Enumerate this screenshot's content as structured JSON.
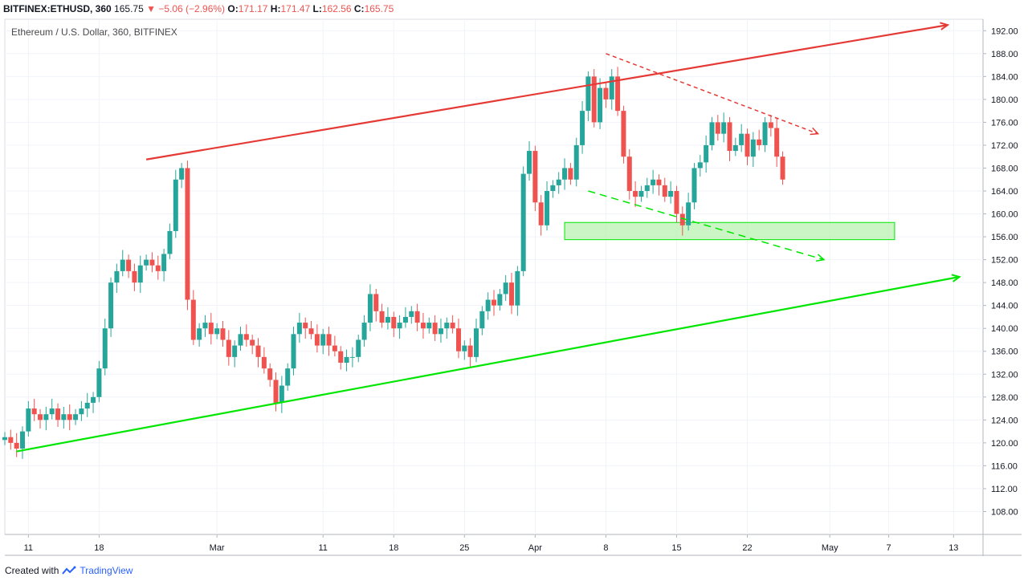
{
  "header": {
    "symbol": "BITFINEX:ETHUSD, 360",
    "last": "165.75",
    "change": "−5.06 (−2.96%)",
    "o_label": "O:",
    "o_val": "171.17",
    "h_label": "H:",
    "h_val": "171.47",
    "l_label": "L:",
    "l_val": "162.56",
    "c_label": "C:",
    "c_val": "165.75"
  },
  "legend_title": "Ethereum / U.S. Dollar, 360, BITFINEX",
  "footer": {
    "created_with": "Created with",
    "brand": "TradingView"
  },
  "colors": {
    "up": "#26a69a",
    "down": "#ef5350",
    "resistance": "#e53935",
    "support": "#00e600",
    "zone": "#b9f2b0"
  },
  "chart_data": {
    "type": "candlestick",
    "title": "Ethereum / U.S. Dollar, 360, BITFINEX",
    "ylim": [
      104,
      194
    ],
    "y_ticks": [
      "192.00",
      "188.00",
      "184.00",
      "180.00",
      "176.00",
      "172.00",
      "168.00",
      "164.00",
      "160.00",
      "156.00",
      "152.00",
      "148.00",
      "144.00",
      "140.00",
      "136.00",
      "132.00",
      "128.00",
      "124.00",
      "120.00",
      "116.00",
      "112.00",
      "108.00"
    ],
    "x_ticks": [
      "11",
      "18",
      "Mar",
      "11",
      "18",
      "25",
      "Apr",
      "8",
      "15",
      "22",
      "May",
      "7",
      "13"
    ],
    "x_tick_index": [
      4,
      16,
      36,
      54,
      66,
      78,
      90,
      102,
      114,
      126,
      140,
      150,
      161
    ],
    "index_range": [
      0,
      166
    ],
    "closes": [
      121,
      120,
      119,
      122,
      126,
      125,
      124,
      125,
      126,
      124,
      125,
      124,
      125,
      126,
      127,
      128,
      133,
      140,
      148,
      150,
      152,
      150,
      148,
      151,
      152,
      151,
      150,
      153,
      157,
      166,
      168,
      145,
      138,
      140,
      141,
      139,
      140,
      138,
      135,
      137,
      139,
      138,
      137,
      135,
      133,
      131,
      127,
      130,
      133,
      139,
      141,
      140,
      139,
      137,
      139,
      137,
      136,
      134,
      135,
      135,
      138,
      141,
      146,
      143,
      141,
      142,
      140,
      141,
      142,
      143,
      141,
      140,
      141,
      139,
      140,
      141,
      140,
      136,
      137,
      135,
      140,
      143,
      145,
      144,
      146,
      148,
      144,
      150,
      167,
      171,
      162,
      158,
      164,
      165,
      166,
      168,
      166,
      172,
      178,
      184,
      176,
      182,
      180,
      184,
      178,
      170,
      164,
      163,
      164,
      165,
      166,
      165,
      163,
      164,
      160,
      158,
      162,
      168,
      169,
      172,
      176,
      174,
      176,
      171,
      172,
      174,
      170,
      173,
      172,
      176,
      175,
      170,
      166
    ],
    "annotations": [
      {
        "kind": "resistance-trendline",
        "from": [
          24,
          169.5
        ],
        "to": [
          160,
          193
        ],
        "color": "red"
      },
      {
        "kind": "support-trendline",
        "from": [
          2,
          118.5
        ],
        "to": [
          162,
          149
        ],
        "color": "green"
      },
      {
        "kind": "descending-resistance",
        "from": [
          102,
          188
        ],
        "to": [
          138,
          174
        ],
        "color": "red",
        "dashed": true
      },
      {
        "kind": "descending-support",
        "from": [
          99,
          164
        ],
        "to": [
          139,
          152
        ],
        "color": "green",
        "dashed": true
      },
      {
        "kind": "support-zone",
        "x": [
          95,
          151
        ],
        "y": [
          155.5,
          158.5
        ],
        "color": "green"
      }
    ]
  }
}
